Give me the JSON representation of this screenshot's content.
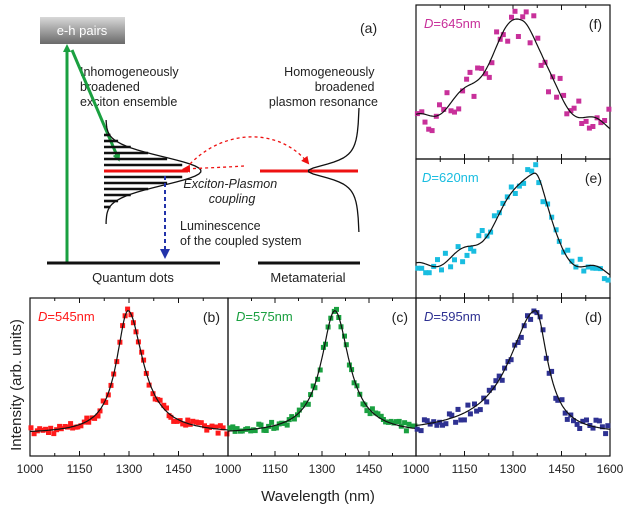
{
  "figure": {
    "ylabel": "Intensity (arb. units)",
    "xlabel": "Wavelength (nm)"
  },
  "schematic": {
    "panel_label": "(a)",
    "eh_pairs": "e-h pairs",
    "inhomog": [
      "Inhomogeneously",
      "broadened",
      "exciton ensemble"
    ],
    "homog": [
      "Homogeneously",
      "broadened",
      "plasmon resonance"
    ],
    "coupling": [
      "Exciton-Plasmon",
      "coupling"
    ],
    "luminescence": [
      "Luminescence",
      "of the coupled system"
    ],
    "qd_label": "Quantum dots",
    "meta_label": "Metamaterial"
  },
  "colors": {
    "b": "#ff1a1a",
    "c": "#1aa040",
    "d": "#2e3192",
    "e": "#19bde0",
    "f": "#c8309a",
    "green_arrow": "#1aa040",
    "blue_arrow": "#2233aa",
    "red_line": "#ee1111"
  },
  "chart_data": [
    {
      "id": "b",
      "type": "scatter",
      "panel_label": "(b)",
      "label_prefix": "D",
      "label_value": "=545nm",
      "color_key": "b",
      "xlim": [
        1000,
        1600
      ],
      "ticks": [
        "1000",
        "1150",
        "1300",
        "1450"
      ],
      "tick_values": [
        1000,
        1150,
        1300,
        1450
      ],
      "peak": 1297,
      "width_left": 42,
      "width_right": 55,
      "noise_amp": 0.035,
      "npts": 72
    },
    {
      "id": "c",
      "type": "scatter",
      "panel_label": "(c)",
      "label_prefix": "D",
      "label_value": "=575nm",
      "color_key": "c",
      "xlim": [
        1000,
        1600
      ],
      "ticks": [
        "1000",
        "1150",
        "1300",
        "1450"
      ],
      "tick_values": [
        1000,
        1150,
        1300,
        1450
      ],
      "peak": 1341,
      "width_left": 52,
      "width_right": 55,
      "noise_amp": 0.035,
      "npts": 72
    },
    {
      "id": "d",
      "type": "scatter",
      "panel_label": "(d)",
      "label_prefix": "D",
      "label_value": "=595nm",
      "color_key": "d",
      "xlim": [
        1000,
        1600
      ],
      "ticks": [
        "1000",
        "1150",
        "1300",
        "1450",
        "1600"
      ],
      "tick_values": [
        1000,
        1150,
        1300,
        1450,
        1600
      ],
      "peak": 1370,
      "width_left": 100,
      "width_right": 45,
      "noise_amp": 0.06,
      "npts": 62
    },
    {
      "id": "e",
      "type": "scatter",
      "panel_label": "(e)",
      "label_prefix": "D",
      "label_value": "=620nm",
      "color_key": "e",
      "xlim": [
        1000,
        1600
      ],
      "ticks": [],
      "tick_values": [],
      "peak": 1365,
      "width_left": 125,
      "width_right": 55,
      "noise_amp": 0.09,
      "npts": 48
    },
    {
      "id": "f",
      "type": "scatter",
      "panel_label": "(f)",
      "label_prefix": "D",
      "label_value": "=645nm",
      "color_key": "f",
      "xlim": [
        1000,
        1600
      ],
      "ticks": [],
      "tick_values": [],
      "peak": 1330,
      "width_left": 140,
      "width_right": 85,
      "noise_amp": 0.16,
      "npts": 52
    }
  ]
}
